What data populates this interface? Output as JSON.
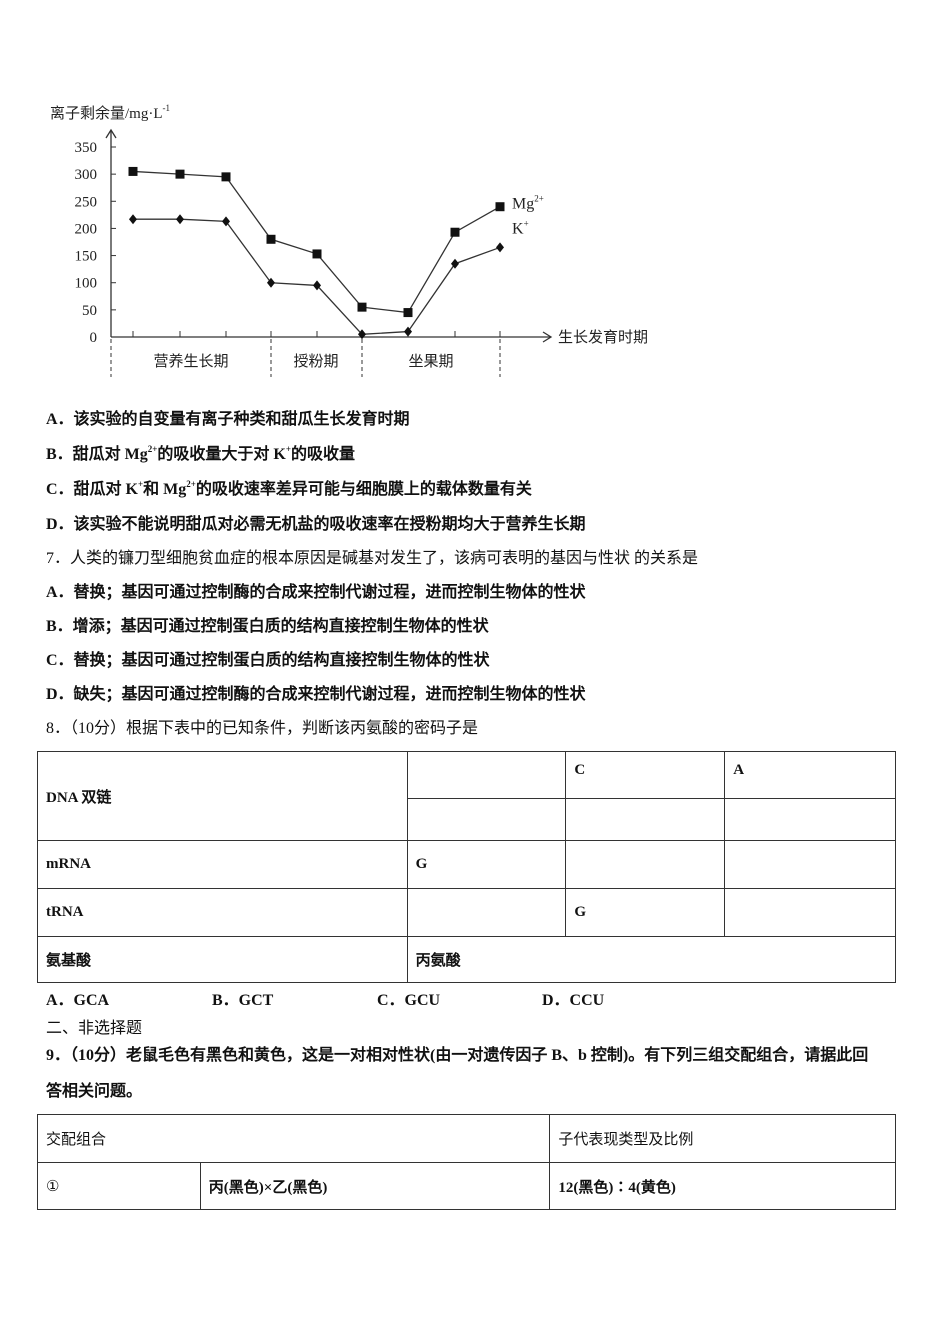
{
  "chart_data": {
    "type": "line",
    "ylabel": "离子剩余量/mg·L",
    "ylabel_sup": "-1",
    "xlabel": "生长发育时期",
    "ylim": [
      0,
      350
    ],
    "yticks": [
      "0",
      "50",
      "100",
      "150",
      "200",
      "250",
      "300",
      "350"
    ],
    "periods": [
      "营养生长期",
      "授粉期",
      "坐果期"
    ],
    "series": [
      {
        "name": "Mg",
        "name_sup": "2+",
        "marker": "square",
        "values": [
          305,
          300,
          295,
          180,
          153,
          55,
          45,
          193,
          240
        ]
      },
      {
        "name": "K",
        "name_sup": "+",
        "marker": "diamond",
        "values": [
          217,
          217,
          213,
          100,
          95,
          5,
          10,
          135,
          165
        ]
      }
    ],
    "grid": false
  },
  "q6": {
    "A": "A．该实验的自变量有离子种类和甜瓜生长发育时期",
    "B": [
      "B．甜瓜对 Mg",
      "2+",
      "的吸收量大于对 K",
      "+",
      "的吸收量"
    ],
    "C": [
      "C．甜瓜对 K",
      "+",
      "和 Mg",
      "2+",
      "的吸收速率差异可能与细胞膜上的载体数量有关"
    ],
    "D": "D．该实验不能说明甜瓜对必需无机盐的吸收速率在授粉期均大于营养生长期"
  },
  "q7": {
    "stem": "7．人类的镰刀型细胞贫血症的根本原因是碱基对发生了，该病可表明的基因与性状 的关系是",
    "A": "A．替换；基因可通过控制酶的合成来控制代谢过程，进而控制生物体的性状",
    "B": "B．增添；基因可通过控制蛋白质的结构直接控制生物体的性状",
    "C": "C．替换；基因可通过控制蛋白质的结构直接控制生物体的性状",
    "D": "D．缺失；基因可通过控制酶的合成来控制代谢过程，进而控制生物体的性状"
  },
  "q8": {
    "stem": "8．（10分）根据下表中的已知条件，判断该丙氨酸的密码子是",
    "table": {
      "dna_label": "DNA 双链",
      "dna_row1": [
        "",
        "C",
        "A"
      ],
      "dna_row2": [
        "",
        "",
        ""
      ],
      "mrna_label": "mRNA",
      "mrna": [
        "G",
        "",
        ""
      ],
      "trna_label": "tRNA",
      "trna": [
        "",
        "G",
        ""
      ],
      "aa_label": "氨基酸",
      "aa": "丙氨酸"
    },
    "options": [
      "A．GCA",
      "B．GCT",
      "C．GCU",
      "D．CCU"
    ]
  },
  "section2": "二、非选择题",
  "q9": {
    "stem1": "9．（10分）老鼠毛色有黑色和黄色，这是一对相对性状(由一对遗传因子 B、b 控制)。有下列三组交配组合，请据此回",
    "stem2": "答相关问题。",
    "table": {
      "h1": "交配组合",
      "h2": "子代表现类型及比例",
      "rows": [
        [
          "①",
          "丙(黑色)×乙(黑色)",
          "12(黑色)∶4(黄色)"
        ]
      ]
    }
  }
}
